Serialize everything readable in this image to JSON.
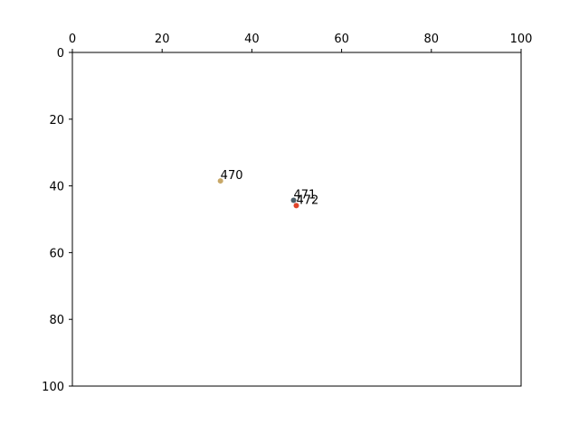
{
  "chart_data": {
    "type": "scatter",
    "title": "",
    "xlabel": "",
    "ylabel": "",
    "x_axis_position": "top",
    "y_axis_inverted": true,
    "xlim": [
      0,
      100
    ],
    "ylim": [
      0,
      100
    ],
    "xticks": [
      0,
      20,
      40,
      60,
      80,
      100
    ],
    "yticks": [
      0,
      20,
      40,
      60,
      80,
      100
    ],
    "grid": false,
    "points": [
      {
        "x": 33.0,
        "y": 38.5,
        "label": "470",
        "color": "#c8a868"
      },
      {
        "x": 49.3,
        "y": 44.3,
        "label": "471",
        "color": "#4a5e68"
      },
      {
        "x": 49.9,
        "y": 45.9,
        "label": "472",
        "color": "#e0442a"
      }
    ]
  }
}
